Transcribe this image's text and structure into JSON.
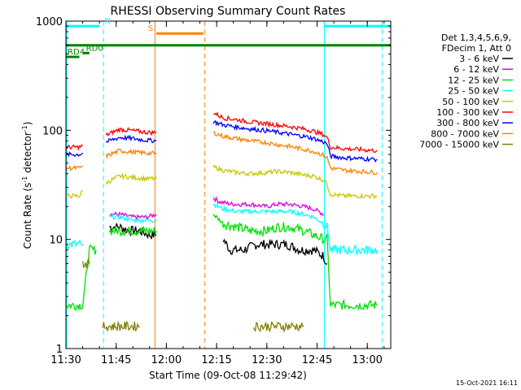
{
  "chart_data": {
    "type": "line",
    "title": "RHESSI Observing Summary Count Rates",
    "xlabel": "Start Time (09-Oct-08 11:29:42)",
    "ylabel": "Count Rate (s",
    "ylabel_sup": "-1",
    "ylabel_tail": " detector",
    "ylabel_close": ")",
    "y_scale": "log",
    "ylim": [
      1,
      1000
    ],
    "xlim": [
      "11:30",
      "13:07"
    ],
    "y_ticks": [
      {
        "v": 1,
        "label": "1"
      },
      {
        "v": 10,
        "label": "10"
      },
      {
        "v": 100,
        "label": "100"
      },
      {
        "v": 1000,
        "label": "1000"
      }
    ],
    "x_ticks": [
      {
        "t": "11:30",
        "label": "11:30"
      },
      {
        "t": "11:45",
        "label": "11:45"
      },
      {
        "t": "12:00",
        "label": "12:00"
      },
      {
        "t": "12:15",
        "label": "12:15"
      },
      {
        "t": "12:30",
        "label": "12:30"
      },
      {
        "t": "12:45",
        "label": "12:45"
      },
      {
        "t": "13:00",
        "label": "13:00"
      }
    ],
    "legend_header": [
      "Det 1,3,4,5,6,9,",
      "FDecim 1, Att 0"
    ],
    "legend_position": "right",
    "series": [
      {
        "name": "3 - 6 keV",
        "color": "#000000",
        "points": [
          [
            "11:35",
            null
          ],
          [
            "11:41",
            null
          ],
          [
            "11:43",
            13
          ],
          [
            "11:46",
            13
          ],
          [
            "11:49",
            12
          ],
          [
            "11:52",
            12
          ],
          [
            "11:55",
            11
          ],
          [
            "11:57",
            11
          ],
          [
            "12:13",
            null
          ],
          [
            "12:14",
            null
          ],
          [
            "12:15",
            null
          ],
          [
            "12:17",
            10
          ],
          [
            "12:19",
            8
          ],
          [
            "12:23",
            8
          ],
          [
            "12:27",
            9
          ],
          [
            "12:30",
            9
          ],
          [
            "12:33",
            9
          ],
          [
            "12:36",
            9
          ],
          [
            "12:40",
            8
          ],
          [
            "12:42",
            8
          ],
          [
            "12:44",
            8
          ],
          [
            "12:47",
            7
          ],
          [
            "12:48",
            6
          ]
        ]
      },
      {
        "name": "6 - 12 keV",
        "color": "#e000e0",
        "points": [
          [
            "11:30",
            null
          ],
          [
            "11:42",
            null
          ],
          [
            "11:43",
            17
          ],
          [
            "11:46",
            17
          ],
          [
            "11:50",
            16
          ],
          [
            "11:54",
            16
          ],
          [
            "11:57",
            17
          ],
          [
            "12:13",
            null
          ],
          [
            "12:14",
            24
          ],
          [
            "12:16",
            22
          ],
          [
            "12:20",
            21
          ],
          [
            "12:25",
            21
          ],
          [
            "12:30",
            20
          ],
          [
            "12:33",
            21
          ],
          [
            "12:37",
            21
          ],
          [
            "12:41",
            20
          ],
          [
            "12:44",
            19
          ],
          [
            "12:47",
            17
          ],
          [
            "12:48",
            null
          ],
          [
            "12:49",
            null
          ],
          [
            "12:52",
            null
          ]
        ]
      },
      {
        "name": "12 - 25 keV",
        "color": "#00e000",
        "points": [
          [
            "11:30",
            2.5
          ],
          [
            "11:35",
            2.5
          ],
          [
            "11:37",
            8
          ],
          [
            "11:39",
            8
          ],
          [
            "11:41",
            null
          ],
          [
            "11:42",
            null
          ],
          [
            "11:43",
            12
          ],
          [
            "11:46",
            12
          ],
          [
            "11:50",
            12
          ],
          [
            "11:54",
            12
          ],
          [
            "11:57",
            12
          ],
          [
            "12:13",
            null
          ],
          [
            "12:14",
            17
          ],
          [
            "12:17",
            14
          ],
          [
            "12:21",
            13
          ],
          [
            "12:25",
            12
          ],
          [
            "12:30",
            12
          ],
          [
            "12:33",
            13
          ],
          [
            "12:37",
            13
          ],
          [
            "12:41",
            12
          ],
          [
            "12:44",
            11
          ],
          [
            "12:47",
            10
          ],
          [
            "12:48",
            10
          ],
          [
            "12:49",
            2.5
          ],
          [
            "12:53",
            2.5
          ],
          [
            "13:03",
            2.5
          ]
        ]
      },
      {
        "name": "25 - 50 keV",
        "color": "#00ffff",
        "points": [
          [
            "11:30",
            9
          ],
          [
            "11:35",
            9
          ],
          [
            "11:37",
            null
          ],
          [
            "11:41",
            null
          ],
          [
            "11:43",
            16
          ],
          [
            "11:46",
            16
          ],
          [
            "11:50",
            15
          ],
          [
            "11:54",
            15
          ],
          [
            "11:57",
            15
          ],
          [
            "12:13",
            null
          ],
          [
            "12:14",
            21
          ],
          [
            "12:17",
            19
          ],
          [
            "12:21",
            18
          ],
          [
            "12:25",
            18
          ],
          [
            "12:30",
            18
          ],
          [
            "12:33",
            18
          ],
          [
            "12:37",
            18
          ],
          [
            "12:41",
            17
          ],
          [
            "12:44",
            16
          ],
          [
            "12:47",
            14
          ],
          [
            "12:48",
            13
          ],
          [
            "12:49",
            8
          ],
          [
            "12:53",
            8
          ],
          [
            "13:03",
            8
          ]
        ]
      },
      {
        "name": "50 - 100 keV",
        "color": "#c8c800",
        "points": [
          [
            "11:30",
            25
          ],
          [
            "11:34",
            25
          ],
          [
            "11:35",
            28
          ],
          [
            "11:37",
            null
          ],
          [
            "11:38",
            null
          ],
          [
            "11:41",
            null
          ],
          [
            "11:42",
            33
          ],
          [
            "11:46",
            38
          ],
          [
            "11:50",
            37
          ],
          [
            "11:54",
            36
          ],
          [
            "11:57",
            36
          ],
          [
            "12:13",
            null
          ],
          [
            "12:14",
            46
          ],
          [
            "12:17",
            43
          ],
          [
            "12:21",
            41
          ],
          [
            "12:25",
            40
          ],
          [
            "12:30",
            41
          ],
          [
            "12:33",
            42
          ],
          [
            "12:37",
            41
          ],
          [
            "12:41",
            39
          ],
          [
            "12:44",
            38
          ],
          [
            "12:47",
            35
          ],
          [
            "12:48",
            32
          ],
          [
            "12:49",
            26
          ],
          [
            "12:53",
            25
          ],
          [
            "13:03",
            25
          ]
        ]
      },
      {
        "name": "100 - 300 keV",
        "color": "#ff0000",
        "points": [
          [
            "11:30",
            70
          ],
          [
            "11:34",
            70
          ],
          [
            "11:35",
            72
          ],
          [
            "11:38",
            null
          ],
          [
            "11:41",
            null
          ],
          [
            "11:42",
            90
          ],
          [
            "11:46",
            102
          ],
          [
            "11:50",
            99
          ],
          [
            "11:54",
            96
          ],
          [
            "11:57",
            95
          ],
          [
            "12:13",
            null
          ],
          [
            "12:14",
            145
          ],
          [
            "12:17",
            130
          ],
          [
            "12:21",
            125
          ],
          [
            "12:25",
            119
          ],
          [
            "12:30",
            115
          ],
          [
            "12:33",
            112
          ],
          [
            "12:37",
            108
          ],
          [
            "12:41",
            103
          ],
          [
            "12:44",
            98
          ],
          [
            "12:47",
            91
          ],
          [
            "12:48",
            86
          ],
          [
            "12:49",
            70
          ],
          [
            "12:53",
            68
          ],
          [
            "13:03",
            65
          ]
        ]
      },
      {
        "name": "300 - 800 keV",
        "color": "#0000ff",
        "points": [
          [
            "11:30",
            60
          ],
          [
            "11:34",
            60
          ],
          [
            "11:35",
            62
          ],
          [
            "11:38",
            null
          ],
          [
            "11:41",
            null
          ],
          [
            "11:42",
            78
          ],
          [
            "11:46",
            86
          ],
          [
            "11:50",
            84
          ],
          [
            "11:54",
            81
          ],
          [
            "11:57",
            80
          ],
          [
            "12:13",
            null
          ],
          [
            "12:14",
            120
          ],
          [
            "12:17",
            112
          ],
          [
            "12:21",
            107
          ],
          [
            "12:25",
            103
          ],
          [
            "12:30",
            99
          ],
          [
            "12:33",
            96
          ],
          [
            "12:37",
            92
          ],
          [
            "12:41",
            88
          ],
          [
            "12:44",
            84
          ],
          [
            "12:47",
            78
          ],
          [
            "12:48",
            75
          ],
          [
            "12:49",
            58
          ],
          [
            "12:53",
            56
          ],
          [
            "13:03",
            54
          ]
        ]
      },
      {
        "name": "800 - 7000 keV",
        "color": "#ff8000",
        "points": [
          [
            "11:30",
            45
          ],
          [
            "11:34",
            45
          ],
          [
            "11:35",
            47
          ],
          [
            "11:38",
            null
          ],
          [
            "11:41",
            null
          ],
          [
            "11:42",
            58
          ],
          [
            "11:46",
            65
          ],
          [
            "11:50",
            63
          ],
          [
            "11:54",
            62
          ],
          [
            "11:57",
            61
          ],
          [
            "12:13",
            null
          ],
          [
            "12:14",
            95
          ],
          [
            "12:17",
            88
          ],
          [
            "12:21",
            84
          ],
          [
            "12:25",
            80
          ],
          [
            "12:30",
            77
          ],
          [
            "12:33",
            74
          ],
          [
            "12:37",
            71
          ],
          [
            "12:41",
            67
          ],
          [
            "12:44",
            64
          ],
          [
            "12:47",
            59
          ],
          [
            "12:48",
            56
          ],
          [
            "12:49",
            45
          ],
          [
            "12:53",
            43
          ],
          [
            "13:03",
            41
          ]
        ]
      },
      {
        "name": "7000 - 15000 keV",
        "color": "#808000",
        "points": [
          [
            "11:35",
            6
          ],
          [
            "11:37",
            6
          ],
          [
            "11:38",
            null
          ],
          [
            "11:40",
            null
          ],
          [
            "11:41",
            1.6
          ],
          [
            "11:45",
            1.6
          ],
          [
            "11:49",
            1.6
          ],
          [
            "11:52",
            1.6
          ],
          [
            "12:13",
            null
          ],
          [
            "12:25",
            null
          ],
          [
            "12:26",
            1.6
          ],
          [
            "12:30",
            1.6
          ],
          [
            "12:34",
            1.6
          ],
          [
            "12:38",
            1.6
          ],
          [
            "12:41",
            1.6
          ],
          [
            "12:42",
            null
          ]
        ]
      }
    ],
    "markers": {
      "vertical_solid": [
        {
          "t": "11:56.6",
          "color": "#ff8000"
        },
        {
          "t": "12:47.2",
          "color": "#00ffff"
        }
      ],
      "vertical_dashed": [
        {
          "t": "11:41.2",
          "color": "#00ffff"
        },
        {
          "t": "12:11.5",
          "color": "#ff8000"
        },
        {
          "t": "13:04.4",
          "color": "#00ffff"
        }
      ],
      "solid_left_edge": {
        "t": "11:30",
        "color": "#00ffff"
      },
      "horizontal": [
        {
          "label": "N",
          "color": "#00ffff",
          "y": 900,
          "segments": [
            [
              "11:30",
              "11:40"
            ],
            [
              "12:47",
              "13:07"
            ]
          ],
          "label_t": "11:41.5"
        },
        {
          "label": "S",
          "color": "#ff8000",
          "y": 770,
          "segments": [
            [
              "11:57",
              "12:11"
            ]
          ],
          "label_t": "11:54.5"
        },
        {
          "label": "",
          "color": "#008000",
          "y": 600,
          "segments": [
            [
              "11:30",
              "13:07"
            ]
          ],
          "label_t": null
        },
        {
          "label": "RD0",
          "color": "#008000",
          "y": 510,
          "segments": [
            [
              "11:35",
              "11:37"
            ]
          ],
          "label_t": "11:36"
        },
        {
          "label": "RD4",
          "color": "#008000",
          "y": 470,
          "segments": [
            [
              "11:30",
              "11:34"
            ]
          ],
          "label_t": "11:30.5"
        }
      ]
    },
    "footer": "15-Oct-2021 16:11"
  }
}
